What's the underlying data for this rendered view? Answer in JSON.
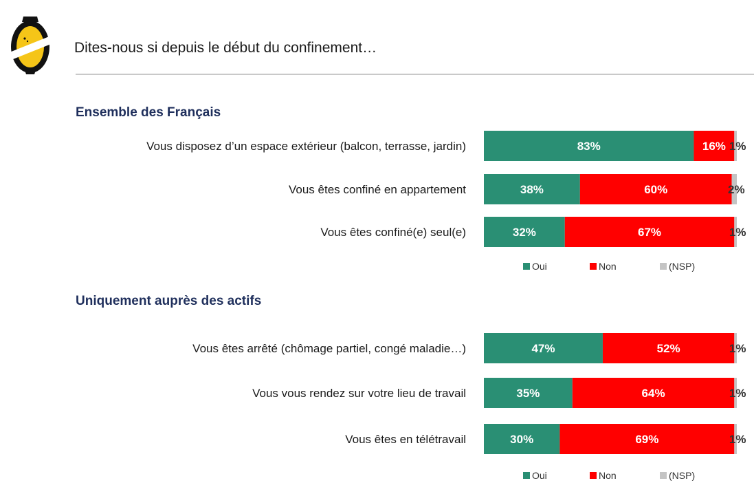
{
  "page": {
    "title": "Dites-nous si depuis le début du confinement…"
  },
  "colors": {
    "oui": "#2a8f74",
    "non": "#ff0000",
    "nsp": "#c4c4c4",
    "section_title": "#1f2f5c"
  },
  "chart_data": [
    {
      "type": "bar",
      "orientation": "horizontal",
      "stacked": true,
      "title": "Ensemble des Français",
      "categories": [
        "Vous disposez d’un espace extérieur (balcon, terrasse, jardin)",
        "Vous êtes confiné en appartement",
        "Vous êtes confiné(e) seul(e)"
      ],
      "series": [
        {
          "name": "Oui",
          "values": [
            83,
            38,
            32
          ],
          "color": "#2a8f74"
        },
        {
          "name": "Non",
          "values": [
            16,
            60,
            67
          ],
          "color": "#ff0000"
        },
        {
          "name": "(NSP)",
          "values": [
            1,
            2,
            1
          ],
          "color": "#c4c4c4"
        }
      ],
      "data_labels": [
        [
          "83%",
          "38%",
          "32%"
        ],
        [
          "16%",
          "60%",
          "67%"
        ],
        [
          "1%",
          "2%",
          "1%"
        ]
      ],
      "legend": "bottom-right",
      "grid": false
    },
    {
      "type": "bar",
      "orientation": "horizontal",
      "stacked": true,
      "title": "Uniquement auprès des actifs",
      "categories": [
        "Vous êtes arrêté (chômage partiel, congé maladie…)",
        "Vous vous rendez sur votre lieu de travail",
        "Vous êtes en télétravail"
      ],
      "series": [
        {
          "name": "Oui",
          "values": [
            47,
            35,
            30
          ],
          "color": "#2a8f74"
        },
        {
          "name": "Non",
          "values": [
            52,
            64,
            69
          ],
          "color": "#ff0000"
        },
        {
          "name": "(NSP)",
          "values": [
            1,
            1,
            1
          ],
          "color": "#c4c4c4"
        }
      ],
      "data_labels": [
        [
          "47%",
          "35%",
          "30%"
        ],
        [
          "52%",
          "64%",
          "69%"
        ],
        [
          "1%",
          "1%",
          "1%"
        ]
      ],
      "legend": "bottom-right",
      "grid": false
    }
  ]
}
